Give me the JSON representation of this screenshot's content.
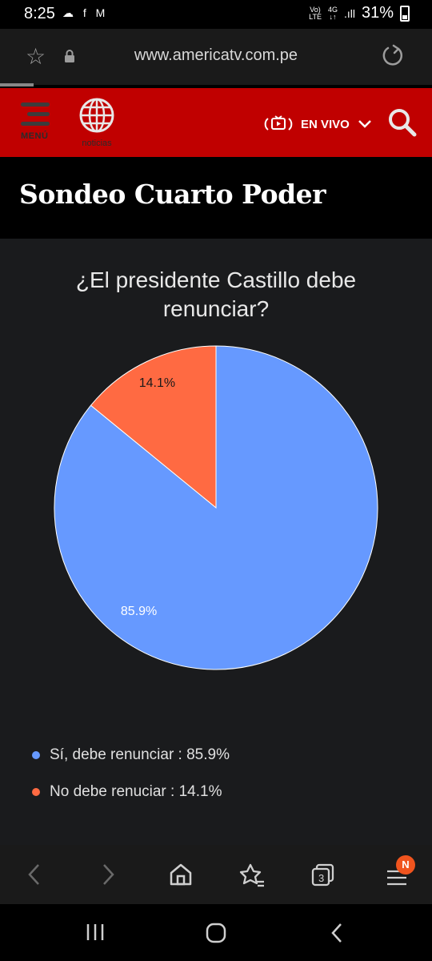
{
  "status": {
    "time": "8:25",
    "notif_icons": "☁ f M",
    "volte": "Vo)\nLTE",
    "net": "4G",
    "battery": "31%"
  },
  "browser": {
    "url": "www.americatv.com.pe"
  },
  "header": {
    "menu_label": "MENÚ",
    "logo_label": "noticias",
    "live_label": "EN VIVO"
  },
  "page": {
    "title": "Sondeo Cuarto Poder"
  },
  "poll": {
    "question": "¿El presidente Castillo debe renunciar?",
    "legend": [
      {
        "label": "Sí, debe renunciar : 85.9%",
        "color": "#6699ff"
      },
      {
        "label": "No debe renuciar : 14.1%",
        "color": "#ff6a42"
      }
    ]
  },
  "chart_data": {
    "type": "pie",
    "title": "¿El presidente Castillo debe renunciar?",
    "categories": [
      "Sí, debe renunciar",
      "No debe renuciar"
    ],
    "values": [
      85.9,
      14.1
    ],
    "labels": [
      "85.9%",
      "14.1%"
    ],
    "colors": [
      "#6699ff",
      "#ff6a42"
    ],
    "legend": "bottom-left"
  },
  "bottom_nav": {
    "tabs_count": "3",
    "menu_badge": "N"
  }
}
